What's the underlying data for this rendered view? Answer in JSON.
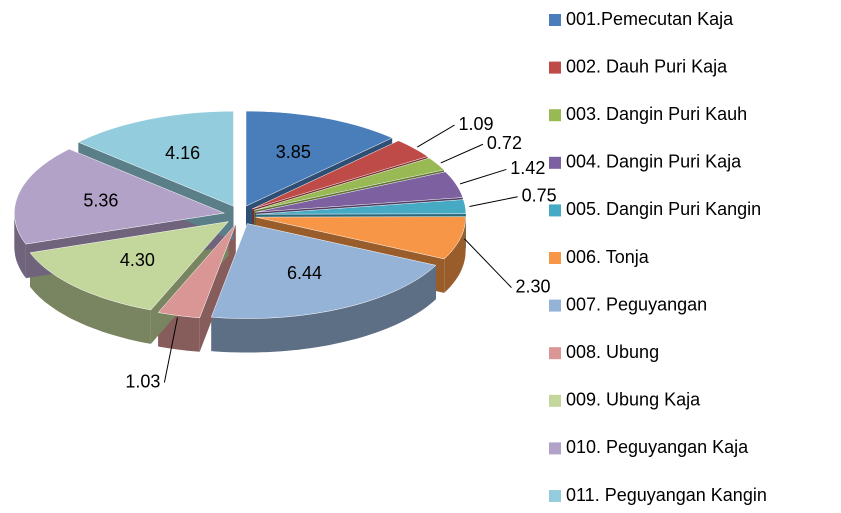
{
  "chart_data": {
    "type": "pie",
    "categories": [
      "001.Pemecutan Kaja",
      "002. Dauh Puri Kaja",
      "003. Dangin Puri Kauh",
      "004. Dangin Puri Kaja",
      "005. Dangin Puri Kangin",
      "006. Tonja",
      "007. Peguyangan",
      "008. Ubung",
      "009. Ubung Kaja",
      "010. Peguyangan Kaja",
      "011. Peguyangan Kangin"
    ],
    "values": [
      3.85,
      1.09,
      0.72,
      1.42,
      0.75,
      2.3,
      6.44,
      1.03,
      4.3,
      5.36,
      4.16
    ],
    "value_labels": [
      "3.85",
      "1.09",
      "0.72",
      "1.42",
      "0.75",
      "2.30",
      "6.44",
      "1.03",
      "4.30",
      "5.36",
      "4.16"
    ],
    "colors": [
      "#4a7ebb",
      "#be4b48",
      "#98b954",
      "#7d60a0",
      "#46aac5",
      "#f79646",
      "#95b3d7",
      "#d99694",
      "#c3d69b",
      "#b3a2c7",
      "#93cddd"
    ],
    "legend": "right"
  }
}
